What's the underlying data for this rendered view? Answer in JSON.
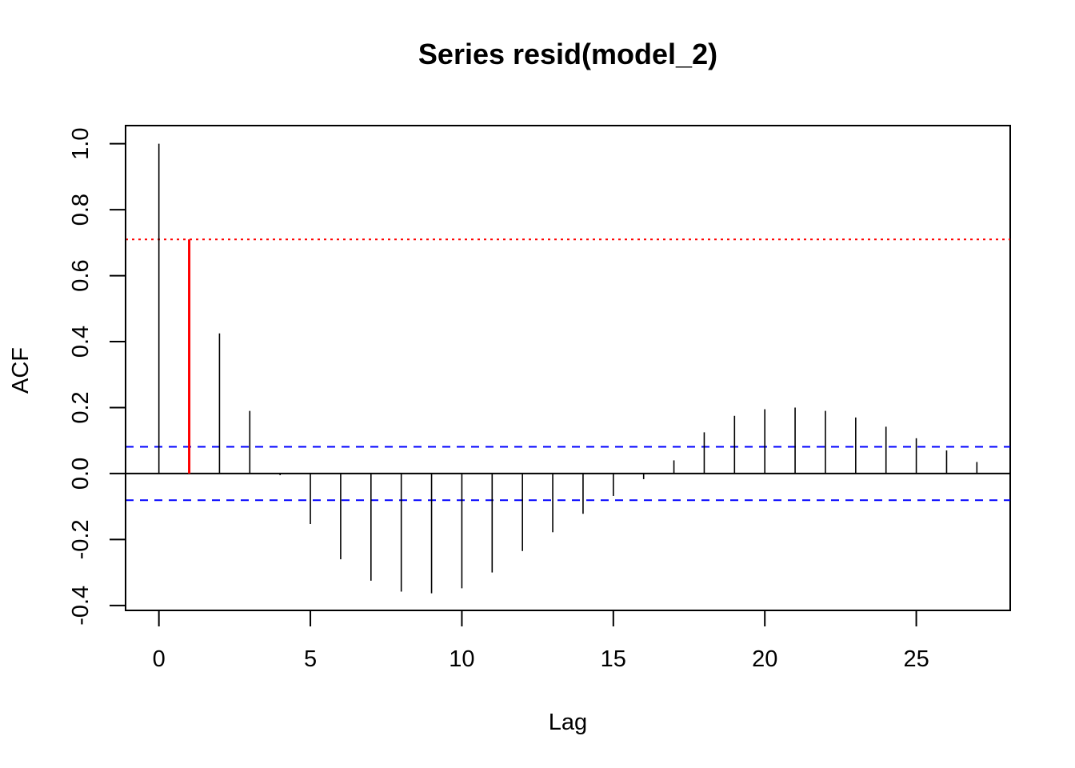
{
  "chart_data": {
    "type": "bar",
    "title": "Series resid(model_2)",
    "xlabel": "Lag",
    "ylabel": "ACF",
    "xlim": [
      -1.1,
      28.1
    ],
    "ylim": [
      -0.415,
      1.055
    ],
    "x_ticks": [
      0,
      5,
      10,
      15,
      20,
      25
    ],
    "y_ticks": [
      -0.4,
      -0.2,
      0.0,
      0.2,
      0.4,
      0.6,
      0.8,
      1.0
    ],
    "y_tick_labels": [
      "-0.4",
      "-0.2",
      "0.0",
      "0.2",
      "0.4",
      "0.6",
      "0.8",
      "1.0"
    ],
    "lags": [
      0,
      1,
      2,
      3,
      4,
      5,
      6,
      7,
      8,
      9,
      10,
      11,
      12,
      13,
      14,
      15,
      16,
      17,
      18,
      19,
      20,
      21,
      22,
      23,
      24,
      25,
      26,
      27
    ],
    "values": [
      1.0,
      0.71,
      0.425,
      0.19,
      -0.005,
      -0.153,
      -0.26,
      -0.325,
      -0.358,
      -0.363,
      -0.348,
      -0.3,
      -0.235,
      -0.178,
      -0.122,
      -0.068,
      -0.017,
      0.04,
      0.125,
      0.175,
      0.195,
      0.2,
      0.19,
      0.17,
      0.142,
      0.107,
      0.07,
      0.035
    ],
    "highlight": {
      "lag": 1,
      "value": 0.71,
      "color": "#ff0000"
    },
    "ci_upper": 0.081,
    "ci_lower": -0.081,
    "ci_color": "#0000ff",
    "ref_line": {
      "value": 0.71,
      "color": "#ff0000",
      "style": "dotted"
    },
    "bar_color": "#000000",
    "grid": false
  }
}
